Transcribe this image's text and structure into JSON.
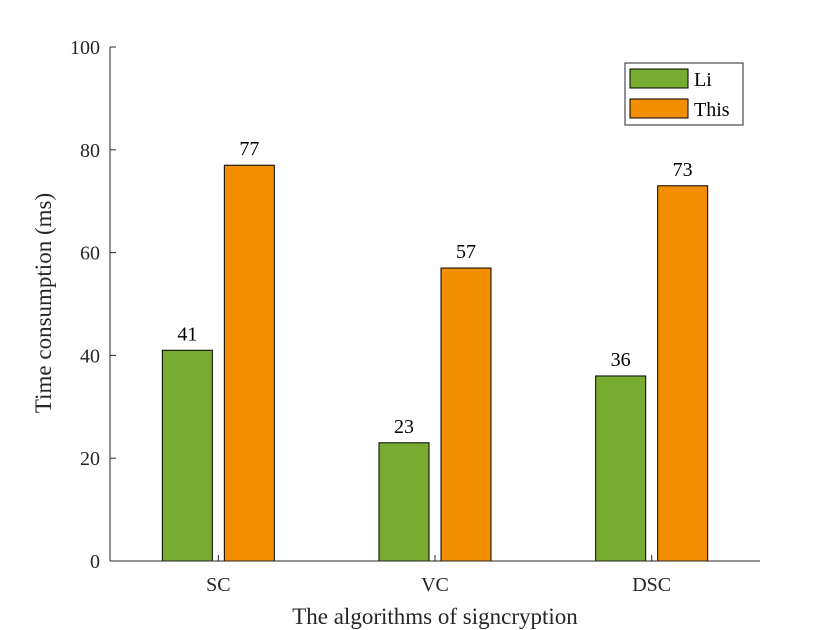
{
  "chart_data": {
    "type": "bar",
    "title": "",
    "xlabel": "The algorithms of signcryption",
    "ylabel": "Time consumption (ms)",
    "categories": [
      "SC",
      "VC",
      "DSC"
    ],
    "series": [
      {
        "name": "Li",
        "values": [
          41,
          23,
          36
        ],
        "color": "#77ac30"
      },
      {
        "name": "This",
        "values": [
          77,
          57,
          73
        ],
        "color": "#f28e00"
      }
    ],
    "ylim": [
      0,
      100
    ],
    "yticks": [
      0,
      20,
      40,
      60,
      80,
      100
    ],
    "grid": false,
    "legend_position": "top-right"
  }
}
